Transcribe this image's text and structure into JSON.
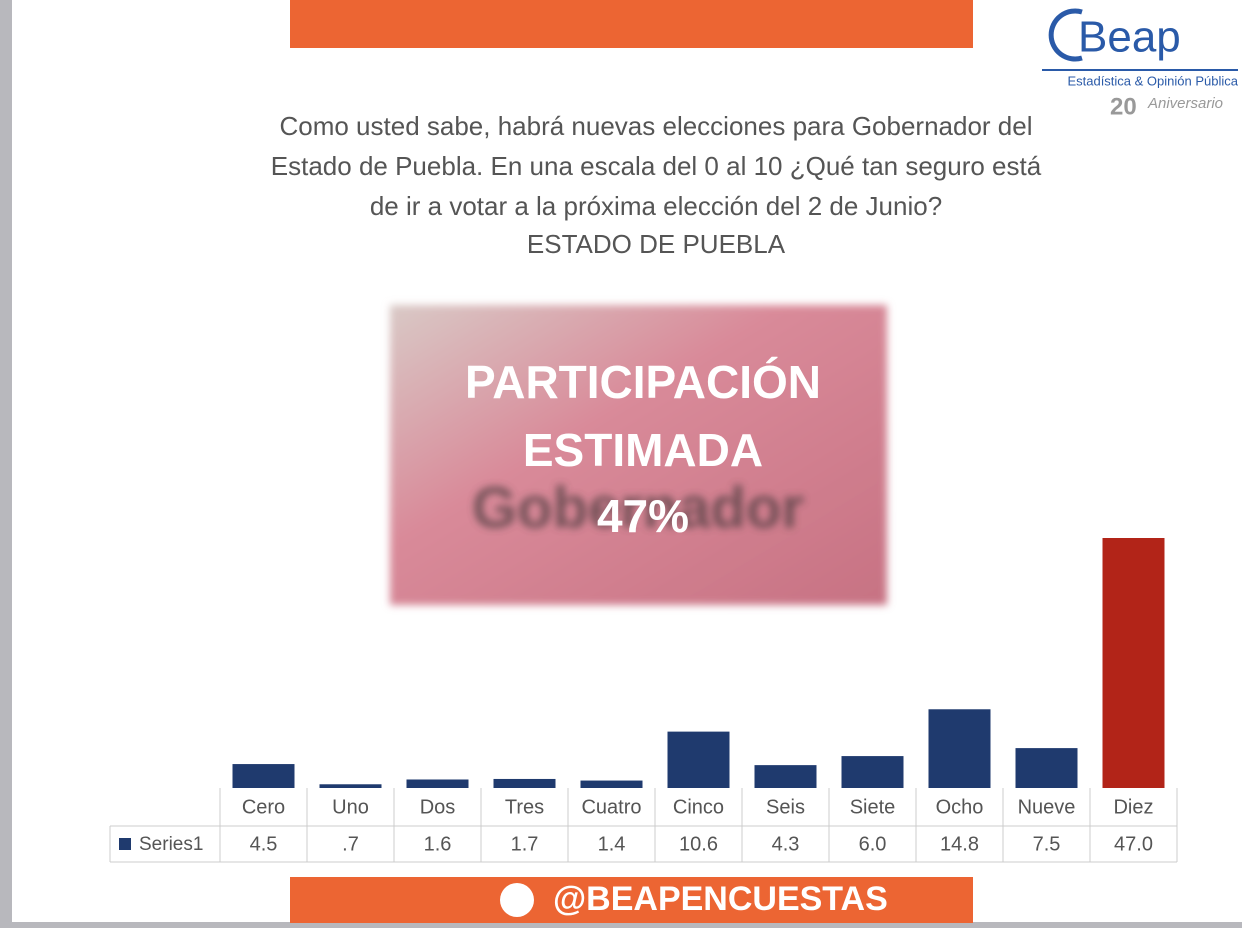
{
  "logo": {
    "name": "Beap",
    "tagline": "Estadística & Opinión Pública",
    "anniversary_number": "20",
    "anniversary_text": "Aniversario"
  },
  "question": [
    "Como usted sabe, habrá nuevas elecciones para Gobernador del",
    "Estado de Puebla. En una escala del 0 al 10 ¿Qué tan seguro está",
    "de ir a votar a la próxima elección del 2 de Junio?",
    "ESTADO DE PUEBLA"
  ],
  "overlay": {
    "photo_text": "Gobernador",
    "lines": [
      "PARTICIPACIÓN",
      "ESTIMADA",
      "47%"
    ]
  },
  "footer": {
    "handle": "@BEAPENCUESTAS"
  },
  "chart_data": {
    "type": "bar",
    "categories": [
      "Cero",
      "Uno",
      "Dos",
      "Tres",
      "Cuatro",
      "Cinco",
      "Seis",
      "Siete",
      "Ocho",
      "Nueve",
      "Diez"
    ],
    "series": [
      {
        "name": "Series1",
        "color": "#1f3a6e",
        "values": [
          4.5,
          0.7,
          1.6,
          1.7,
          1.4,
          10.6,
          4.3,
          6.0,
          14.8,
          7.5,
          47.0
        ],
        "value_labels": [
          "4.5",
          ".7",
          "1.6",
          "1.7",
          "1.4",
          "10.6",
          "4.3",
          "6.0",
          "14.8",
          "7.5",
          "47.0"
        ],
        "colors": [
          "#1f3a6e",
          "#1f3a6e",
          "#1f3a6e",
          "#1f3a6e",
          "#1f3a6e",
          "#1f3a6e",
          "#1f3a6e",
          "#1f3a6e",
          "#1f3a6e",
          "#1f3a6e",
          "#b22418"
        ]
      }
    ]
  }
}
